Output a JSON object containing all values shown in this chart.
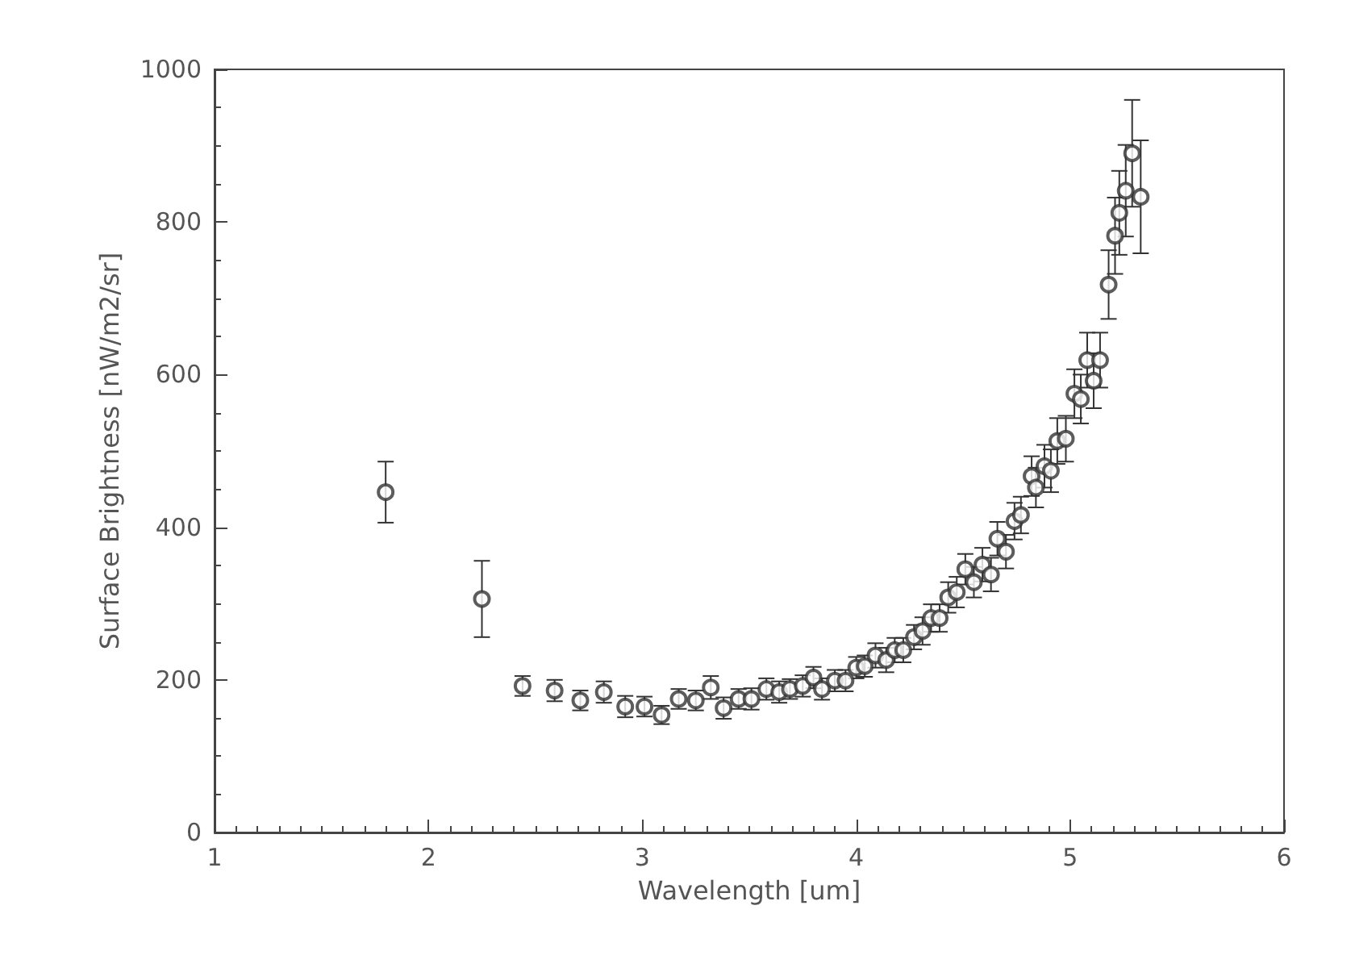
{
  "chart_data": {
    "type": "scatter",
    "xlabel": "Wavelength [um]",
    "ylabel": "Surface Brightness [nW/m2/sr]",
    "x": [
      1.8,
      2.25,
      2.44,
      2.59,
      2.71,
      2.82,
      2.92,
      3.01,
      3.09,
      3.17,
      3.25,
      3.32,
      3.38,
      3.45,
      3.51,
      3.58,
      3.64,
      3.69,
      3.75,
      3.8,
      3.84,
      3.9,
      3.95,
      4.0,
      4.04,
      4.09,
      4.14,
      4.18,
      4.22,
      4.27,
      4.31,
      4.35,
      4.39,
      4.43,
      4.47,
      4.51,
      4.55,
      4.59,
      4.63,
      4.66,
      4.7,
      4.74,
      4.77,
      4.82,
      4.84,
      4.88,
      4.91,
      4.94,
      4.98,
      5.02,
      5.05,
      5.08,
      5.11,
      5.14,
      5.18,
      5.21,
      5.23,
      5.26,
      5.29,
      5.33
    ],
    "series": [
      {
        "color": "#333333",
        "values": [
          446,
          306,
          192,
          186,
          173,
          184,
          165,
          165,
          154,
          175,
          173,
          190,
          163,
          175,
          175,
          188,
          184,
          188,
          192,
          203,
          188,
          199,
          199,
          216,
          218,
          232,
          226,
          239,
          239,
          256,
          264,
          281,
          281,
          308,
          315,
          345,
          328,
          351,
          338,
          385,
          368,
          408,
          416,
          467,
          452,
          480,
          474,
          513,
          516,
          575,
          568,
          619,
          592,
          619,
          718,
          782,
          812,
          841,
          890,
          833
        ],
        "errors": [
          40,
          50,
          13,
          14,
          13,
          14,
          14,
          13,
          12,
          13,
          13,
          15,
          14,
          13,
          14,
          14,
          14,
          13,
          14,
          14,
          14,
          14,
          14,
          14,
          14,
          16,
          16,
          16,
          16,
          16,
          18,
          18,
          18,
          20,
          20,
          20,
          20,
          22,
          22,
          22,
          22,
          24,
          24,
          26,
          26,
          28,
          28,
          30,
          30,
          32,
          32,
          36,
          36,
          36,
          45,
          50,
          55,
          60,
          70,
          74
        ]
      }
    ],
    "xlim": [
      1,
      6
    ],
    "xticks": [
      1,
      2,
      3,
      4,
      5,
      6
    ],
    "ylim": [
      0,
      1000
    ],
    "yticks": [
      0,
      200,
      400,
      600,
      800,
      1000
    ],
    "marker": "circle"
  }
}
